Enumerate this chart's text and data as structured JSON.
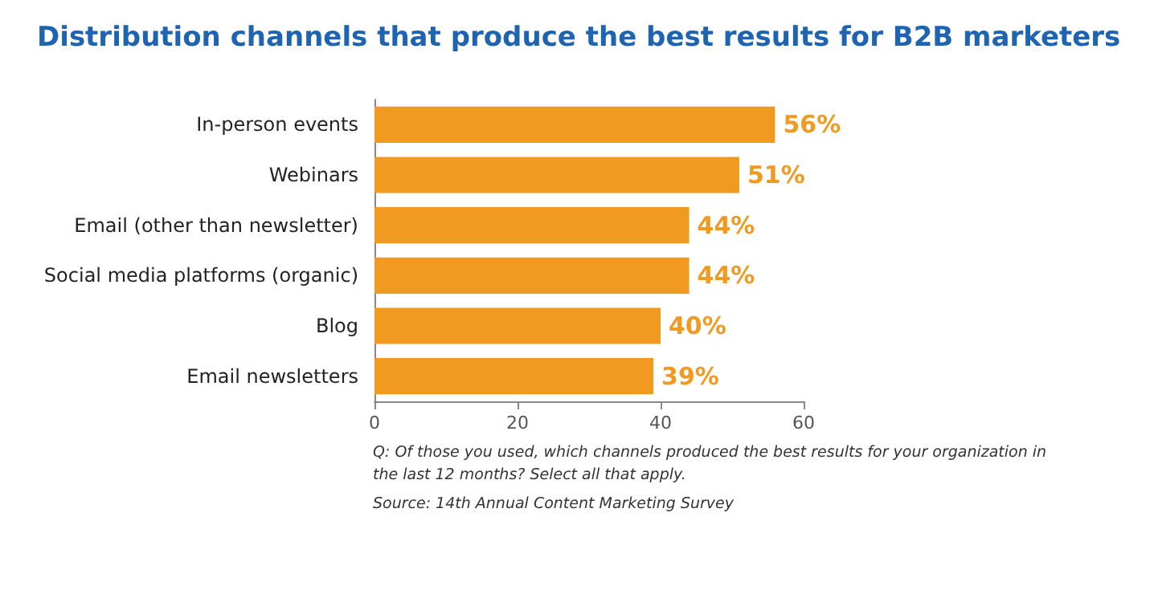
{
  "chart_data": {
    "type": "bar",
    "orientation": "horizontal",
    "title": "Distribution channels that produce the best results for B2B marketers",
    "categories": [
      "In-person events",
      "Webinars",
      "Email (other than newsletter)",
      "Social media platforms (organic)",
      "Blog",
      "Email newsletters"
    ],
    "values": [
      56,
      51,
      44,
      44,
      40,
      39
    ],
    "value_labels": [
      "56%",
      "51%",
      "44%",
      "44%",
      "40%",
      "39%"
    ],
    "color": "#f09a22",
    "xlim": [
      0,
      60
    ],
    "xticks": [
      0,
      20,
      40,
      60
    ],
    "grid": false,
    "annotations": [
      "Q: Of those you used, which channels produced the best results for your organization in the last 12 months? Select all that apply.",
      "Source: 14th Annual Content Marketing Survey"
    ]
  }
}
